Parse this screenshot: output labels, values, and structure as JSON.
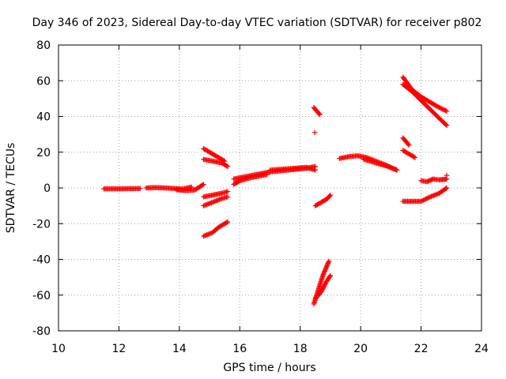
{
  "chart_data": {
    "type": "scatter",
    "title": "Day 346 of 2023, Sidereal Day-to-day VTEC variation (SDTVAR) for receiver p802",
    "xlabel": "GPS time / hours",
    "ylabel": "SDTVAR / TECUs",
    "xlim": [
      10,
      24
    ],
    "ylim": [
      -80,
      80
    ],
    "xticks": [
      10,
      12,
      14,
      16,
      18,
      20,
      22,
      24
    ],
    "yticks": [
      -80,
      -60,
      -40,
      -20,
      0,
      20,
      40,
      60,
      80
    ],
    "grid": true,
    "marker": "+",
    "color": "#ff0000",
    "series": [
      {
        "x": [
          11.5,
          11.8,
          12.1,
          12.4,
          12.7
        ],
        "y": [
          -0.5,
          -0.5,
          -0.5,
          -0.4,
          -0.3
        ]
      },
      {
        "x": [
          12.9,
          13.2,
          13.5,
          13.8,
          14.1,
          14.4
        ],
        "y": [
          0,
          0.2,
          0,
          -0.3,
          -0.6,
          0.5
        ]
      },
      {
        "x": [
          13.9,
          14.2,
          14.5,
          14.8
        ],
        "y": [
          -1,
          -1.5,
          -1.2,
          2
        ]
      },
      {
        "x": [
          14.8,
          15.0,
          15.2,
          15.5
        ],
        "y": [
          22,
          20,
          18,
          15
        ]
      },
      {
        "x": [
          14.8,
          15.1,
          15.4,
          15.6
        ],
        "y": [
          16,
          15,
          14,
          12
        ]
      },
      {
        "x": [
          14.8,
          15.1,
          15.4,
          15.6
        ],
        "y": [
          -5,
          -4,
          -3,
          -2
        ]
      },
      {
        "x": [
          14.8,
          15.1,
          15.4,
          15.6
        ],
        "y": [
          -10,
          -8,
          -6,
          -5
        ]
      },
      {
        "x": [
          14.8,
          15.1,
          15.3,
          15.6
        ],
        "y": [
          -27,
          -25,
          -22,
          -19
        ]
      },
      {
        "x": [
          15.8,
          16.0,
          16.3,
          16.6,
          16.9
        ],
        "y": [
          2,
          4,
          5.5,
          6.5,
          7.5
        ]
      },
      {
        "x": [
          15.8,
          16.1,
          16.4,
          16.7,
          17.0
        ],
        "y": [
          5,
          6,
          7,
          8,
          9
        ]
      },
      {
        "x": [
          17.0,
          17.3,
          17.6,
          17.9,
          18.2,
          18.5
        ],
        "y": [
          9,
          9.5,
          10,
          10.5,
          11,
          12
        ]
      },
      {
        "x": [
          17.0,
          17.4,
          17.8,
          18.2,
          18.5
        ],
        "y": [
          10,
          10.5,
          11,
          11.5,
          10
        ]
      },
      {
        "x": [
          18.45,
          18.55,
          18.65
        ],
        "y": [
          45,
          43,
          41
        ]
      },
      {
        "x": [
          18.48
        ],
        "y": [
          31
        ]
      },
      {
        "x": [
          18.5,
          18.7,
          18.9,
          19.0
        ],
        "y": [
          -10,
          -8,
          -6,
          -4
        ]
      },
      {
        "x": [
          18.45,
          18.6,
          18.75,
          18.95
        ],
        "y": [
          -65,
          -57,
          -49,
          -41
        ]
      },
      {
        "x": [
          18.5,
          18.7,
          18.85,
          19.0
        ],
        "y": [
          -62,
          -58,
          -53,
          -49
        ]
      },
      {
        "x": [
          19.3,
          19.6,
          19.9,
          20.2,
          20.5,
          20.8,
          21.2
        ],
        "y": [
          16.5,
          17.5,
          18,
          17,
          15,
          13,
          10
        ]
      },
      {
        "x": [
          20.1,
          20.5,
          20.9,
          21.2
        ],
        "y": [
          16,
          14,
          12,
          10
        ]
      },
      {
        "x": [
          21.4,
          21.5,
          21.6
        ],
        "y": [
          28,
          26,
          24
        ]
      },
      {
        "x": [
          21.4,
          21.6,
          21.8
        ],
        "y": [
          21,
          19,
          17
        ]
      },
      {
        "x": [
          21.4,
          21.7,
          22.0,
          22.3,
          22.6,
          22.85
        ],
        "y": [
          62,
          55,
          51,
          48,
          45,
          43
        ]
      },
      {
        "x": [
          21.4,
          21.7,
          22.0,
          22.3,
          22.6,
          22.85
        ],
        "y": [
          58,
          54,
          49,
          44,
          39,
          35
        ]
      },
      {
        "x": [
          22.0,
          22.2,
          22.4,
          22.6,
          22.85
        ],
        "y": [
          4,
          3.5,
          5,
          4.5,
          5
        ]
      },
      {
        "x": [
          22.85
        ],
        "y": [
          7
        ]
      },
      {
        "x": [
          21.4,
          21.7,
          22.0,
          22.3,
          22.6,
          22.85
        ],
        "y": [
          -7.5,
          -7.5,
          -7.5,
          -5,
          -3,
          0
        ]
      }
    ]
  }
}
